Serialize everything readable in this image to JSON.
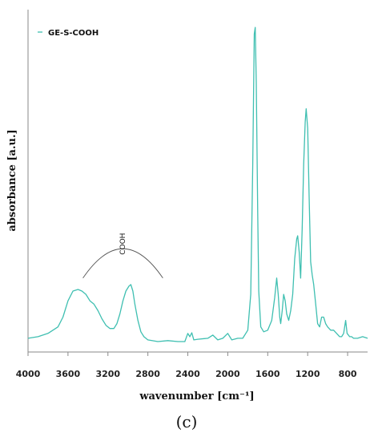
{
  "panel_label": "(c)",
  "chart_data": {
    "type": "line",
    "xlabel": "wavenumber [cm⁻¹]",
    "ylabel": "absorbance [a.u.]",
    "xlim": [
      4000,
      600
    ],
    "x_reversed": true,
    "ylim": [
      0,
      1
    ],
    "y_ticks_shown": false,
    "grid": false,
    "legend_position": "top-left",
    "x_ticks": [
      4000,
      3600,
      3200,
      2800,
      2400,
      2000,
      1600,
      1200,
      800
    ],
    "x_tick_labels": [
      "4000",
      "3600",
      "3200",
      "2800",
      "2400",
      "2000",
      "1600",
      "1200",
      "800"
    ],
    "annotations": [
      {
        "text": "COOH",
        "x_start": 3450,
        "x_end": 2650
      }
    ],
    "colors": {
      "series": "#3fbfb1",
      "axis": "#666666",
      "annotation": "#555555"
    },
    "series": [
      {
        "name": "GE-S-COOH",
        "points": [
          [
            4000,
            0.015
          ],
          [
            3900,
            0.02
          ],
          [
            3800,
            0.03
          ],
          [
            3700,
            0.05
          ],
          [
            3650,
            0.08
          ],
          [
            3600,
            0.13
          ],
          [
            3550,
            0.16
          ],
          [
            3500,
            0.165
          ],
          [
            3460,
            0.16
          ],
          [
            3420,
            0.15
          ],
          [
            3380,
            0.13
          ],
          [
            3340,
            0.12
          ],
          [
            3300,
            0.1
          ],
          [
            3260,
            0.075
          ],
          [
            3220,
            0.055
          ],
          [
            3180,
            0.045
          ],
          [
            3140,
            0.045
          ],
          [
            3110,
            0.06
          ],
          [
            3080,
            0.09
          ],
          [
            3050,
            0.13
          ],
          [
            3020,
            0.16
          ],
          [
            2990,
            0.175
          ],
          [
            2970,
            0.18
          ],
          [
            2950,
            0.16
          ],
          [
            2930,
            0.12
          ],
          [
            2900,
            0.07
          ],
          [
            2870,
            0.035
          ],
          [
            2840,
            0.02
          ],
          [
            2800,
            0.01
          ],
          [
            2700,
            0.005
          ],
          [
            2600,
            0.008
          ],
          [
            2500,
            0.005
          ],
          [
            2430,
            0.005
          ],
          [
            2400,
            0.03
          ],
          [
            2380,
            0.02
          ],
          [
            2360,
            0.032
          ],
          [
            2340,
            0.01
          ],
          [
            2300,
            0.012
          ],
          [
            2200,
            0.015
          ],
          [
            2150,
            0.025
          ],
          [
            2100,
            0.01
          ],
          [
            2050,
            0.015
          ],
          [
            2000,
            0.03
          ],
          [
            1960,
            0.01
          ],
          [
            1900,
            0.015
          ],
          [
            1850,
            0.015
          ],
          [
            1800,
            0.04
          ],
          [
            1770,
            0.15
          ],
          [
            1750,
            0.55
          ],
          [
            1735,
            0.95
          ],
          [
            1725,
            0.97
          ],
          [
            1715,
            0.8
          ],
          [
            1700,
            0.4
          ],
          [
            1690,
            0.16
          ],
          [
            1670,
            0.05
          ],
          [
            1640,
            0.035
          ],
          [
            1600,
            0.04
          ],
          [
            1560,
            0.07
          ],
          [
            1530,
            0.14
          ],
          [
            1510,
            0.2
          ],
          [
            1495,
            0.15
          ],
          [
            1480,
            0.08
          ],
          [
            1470,
            0.06
          ],
          [
            1455,
            0.1
          ],
          [
            1440,
            0.15
          ],
          [
            1425,
            0.13
          ],
          [
            1410,
            0.09
          ],
          [
            1390,
            0.07
          ],
          [
            1370,
            0.1
          ],
          [
            1350,
            0.15
          ],
          [
            1330,
            0.26
          ],
          [
            1310,
            0.32
          ],
          [
            1300,
            0.33
          ],
          [
            1285,
            0.28
          ],
          [
            1270,
            0.2
          ],
          [
            1255,
            0.35
          ],
          [
            1240,
            0.55
          ],
          [
            1225,
            0.68
          ],
          [
            1215,
            0.72
          ],
          [
            1200,
            0.66
          ],
          [
            1185,
            0.45
          ],
          [
            1170,
            0.25
          ],
          [
            1155,
            0.21
          ],
          [
            1140,
            0.18
          ],
          [
            1120,
            0.12
          ],
          [
            1100,
            0.06
          ],
          [
            1080,
            0.05
          ],
          [
            1060,
            0.08
          ],
          [
            1040,
            0.08
          ],
          [
            1020,
            0.06
          ],
          [
            1000,
            0.05
          ],
          [
            970,
            0.04
          ],
          [
            940,
            0.04
          ],
          [
            910,
            0.03
          ],
          [
            880,
            0.02
          ],
          [
            860,
            0.02
          ],
          [
            840,
            0.03
          ],
          [
            820,
            0.07
          ],
          [
            805,
            0.03
          ],
          [
            780,
            0.02
          ],
          [
            760,
            0.02
          ],
          [
            740,
            0.015
          ],
          [
            700,
            0.015
          ],
          [
            650,
            0.02
          ],
          [
            600,
            0.015
          ]
        ]
      }
    ]
  }
}
